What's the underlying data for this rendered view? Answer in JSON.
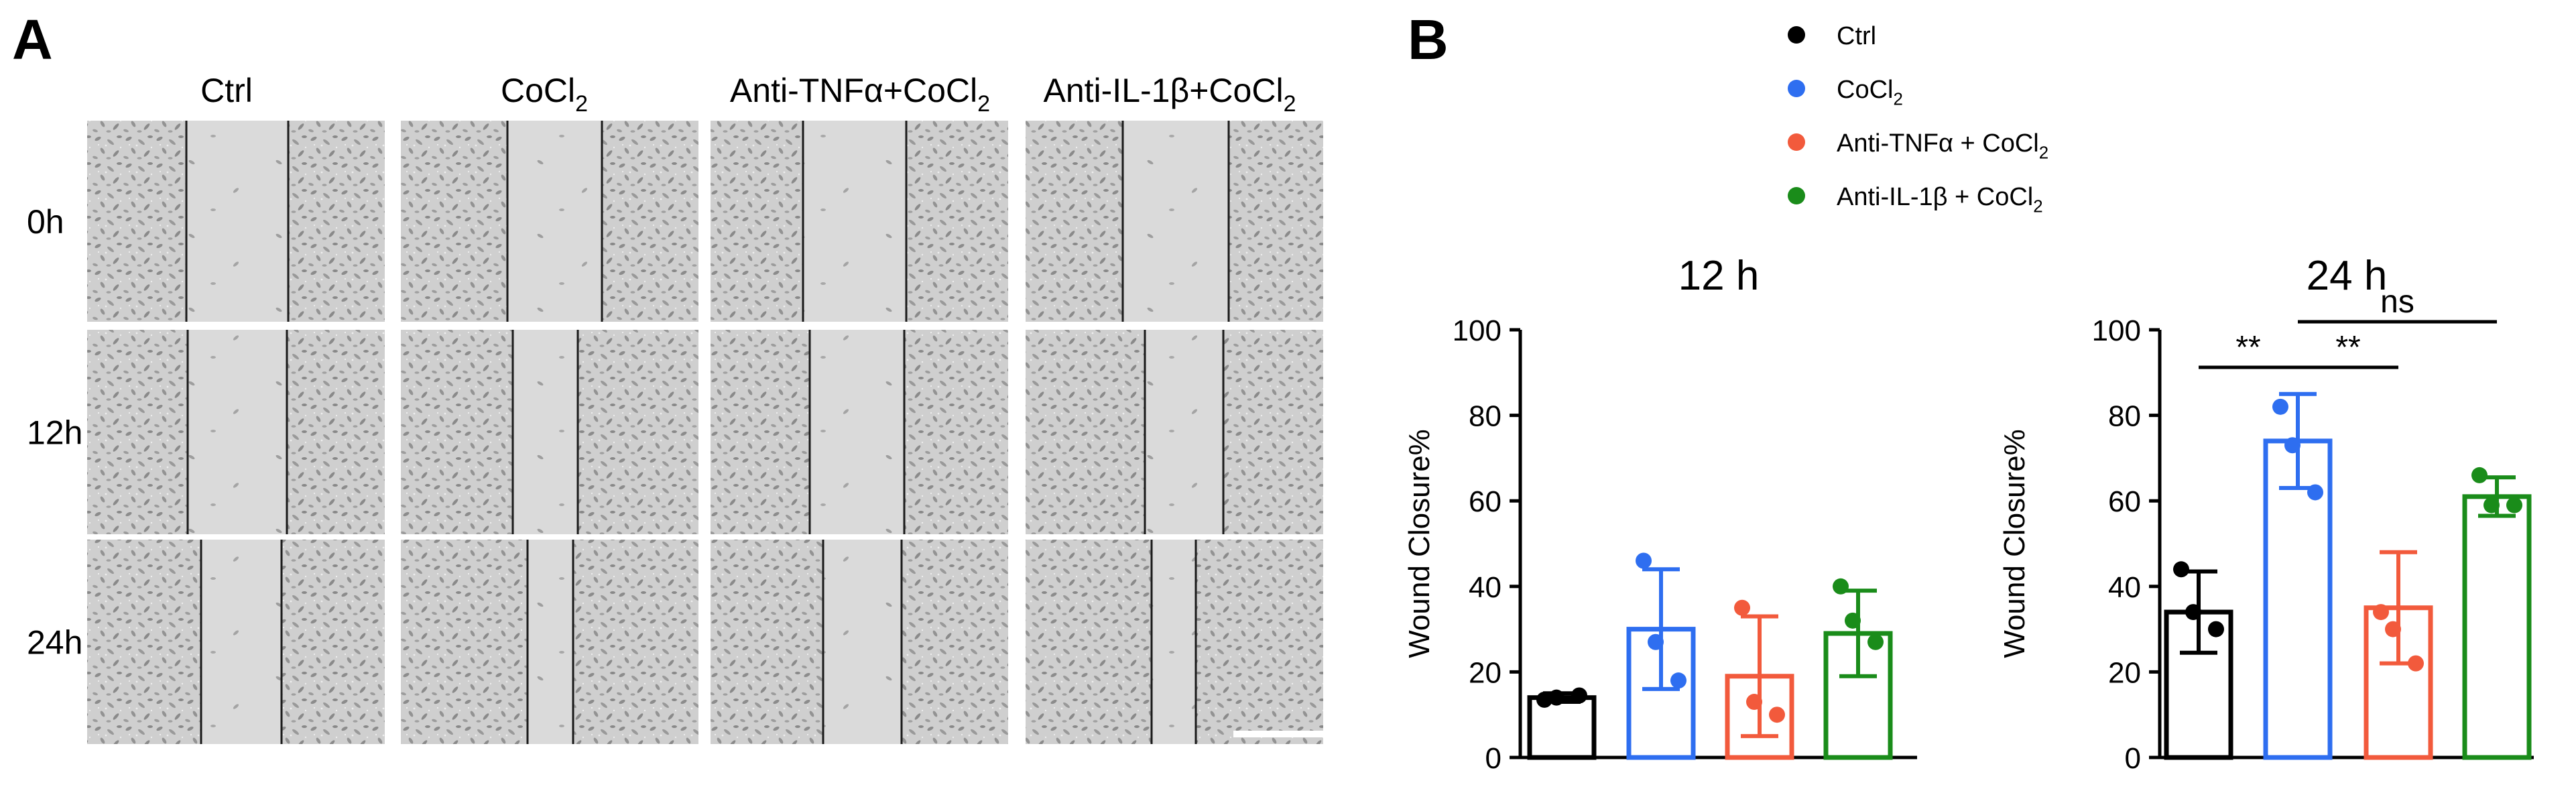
{
  "panel_a": {
    "label": "A",
    "columns": [
      {
        "text": "Ctrl",
        "sub": ""
      },
      {
        "text": "CoCl",
        "sub": "2"
      },
      {
        "text": "Anti-TNFα+CoCl",
        "sub": "2"
      },
      {
        "text": "Anti-IL-1β+CoCl",
        "sub": "2"
      }
    ],
    "rows": [
      "0h",
      "12h",
      "24h"
    ]
  },
  "panel_b": {
    "label": "B",
    "legend": [
      {
        "text": "Ctrl",
        "sub": "",
        "color": "#000000"
      },
      {
        "text": "CoCl",
        "sub": "2",
        "color": "#2e6ef0"
      },
      {
        "text": "Anti-TNFα + CoCl",
        "sub": "2",
        "color": "#f25a3c"
      },
      {
        "text": "Anti-IL-1β + CoCl",
        "sub": "2",
        "color": "#1a8c1a"
      }
    ]
  },
  "chart_data": [
    {
      "type": "bar",
      "title": "12 h",
      "ylabel": "Wound Closure%",
      "xlabel": "",
      "ylim": [
        0,
        100
      ],
      "yticks": [
        "0",
        "20",
        "40",
        "60",
        "80",
        "100"
      ],
      "categories": [
        "Ctrl",
        "CoCl2",
        "Anti-TNFα + CoCl2",
        "Anti-IL-1β + CoCl2"
      ],
      "values": [
        14,
        30,
        19,
        29
      ],
      "errors": [
        1,
        14,
        14,
        10
      ],
      "points": [
        [
          13.5,
          14.0,
          14.5
        ],
        [
          46,
          27,
          18
        ],
        [
          35,
          13,
          10
        ],
        [
          40,
          32,
          27
        ]
      ],
      "colors": [
        "#000000",
        "#2e6ef0",
        "#f25a3c",
        "#1a8c1a"
      ],
      "significance": []
    },
    {
      "type": "bar",
      "title": "24 h",
      "ylabel": "Wound Closure%",
      "xlabel": "",
      "ylim": [
        0,
        100
      ],
      "yticks": [
        "0",
        "20",
        "40",
        "60",
        "80",
        "100"
      ],
      "categories": [
        "Ctrl",
        "CoCl2",
        "Anti-TNFα + CoCl2",
        "Anti-IL-1β + CoCl2"
      ],
      "values": [
        34,
        74,
        35,
        61
      ],
      "errors": [
        9.5,
        11,
        13,
        4.5
      ],
      "points": [
        [
          44,
          34,
          30
        ],
        [
          82,
          73,
          62
        ],
        [
          34,
          30,
          22
        ],
        [
          66,
          59,
          59
        ]
      ],
      "colors": [
        "#000000",
        "#2e6ef0",
        "#f25a3c",
        "#1a8c1a"
      ],
      "significance": [
        {
          "from": 0,
          "to": 1,
          "label": "**"
        },
        {
          "from": 1,
          "to": 2,
          "label": "**"
        },
        {
          "from": 1,
          "to": 3,
          "label": "ns"
        }
      ]
    }
  ]
}
